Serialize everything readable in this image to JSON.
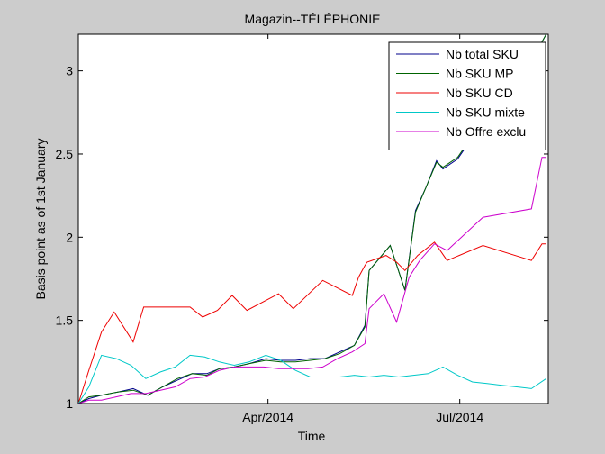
{
  "window": {
    "background": "#cccccc"
  },
  "chart_data": {
    "type": "line",
    "title": "Magazin--TÉLÉPHONIE",
    "xlabel": "Time",
    "ylabel": "Basis point as of 1st January",
    "x_ticks": [
      {
        "date": "2014-04-01",
        "label": "Apr/2014"
      },
      {
        "date": "2014-07-01",
        "label": "Jul/2014"
      }
    ],
    "xlim": [
      "2014-01-01",
      "2014-08-12"
    ],
    "ylim": [
      1,
      3.22
    ],
    "y_ticks": [
      1,
      1.5,
      2,
      2.5,
      3
    ],
    "y_tick_labels": [
      "1",
      "1.5",
      "2",
      "2.5",
      "3"
    ],
    "grid": false,
    "legend_position": "top-right",
    "series": [
      {
        "name": "Nb total SKU",
        "color": "#00008b",
        "x": [
          "2014-01-01",
          "2014-01-06",
          "2014-01-12",
          "2014-01-20",
          "2014-01-27",
          "2014-02-03",
          "2014-02-10",
          "2014-02-17",
          "2014-02-24",
          "2014-03-03",
          "2014-03-09",
          "2014-03-16",
          "2014-03-23",
          "2014-03-31",
          "2014-04-07",
          "2014-04-14",
          "2014-04-21",
          "2014-04-28",
          "2014-05-05",
          "2014-05-12",
          "2014-05-17",
          "2014-05-19",
          "2014-05-29",
          "2014-06-05",
          "2014-06-10",
          "2014-06-15",
          "2014-06-20",
          "2014-06-23",
          "2014-06-30",
          "2014-07-07",
          "2014-07-14",
          "2014-07-21",
          "2014-07-28",
          "2014-08-04",
          "2014-08-08",
          "2014-08-11"
        ],
        "y": [
          1.0,
          1.03,
          1.05,
          1.07,
          1.09,
          1.05,
          1.1,
          1.14,
          1.18,
          1.18,
          1.21,
          1.22,
          1.24,
          1.27,
          1.26,
          1.26,
          1.27,
          1.27,
          1.31,
          1.35,
          1.47,
          1.8,
          1.95,
          1.68,
          2.16,
          2.3,
          2.46,
          2.41,
          2.47,
          2.6,
          2.72,
          2.85,
          2.95,
          3.05,
          3.15,
          3.22
        ]
      },
      {
        "name": "Nb SKU MP",
        "color": "#006400",
        "x": [
          "2014-01-01",
          "2014-01-06",
          "2014-01-12",
          "2014-01-20",
          "2014-01-27",
          "2014-02-03",
          "2014-02-10",
          "2014-02-17",
          "2014-02-24",
          "2014-03-03",
          "2014-03-09",
          "2014-03-16",
          "2014-03-23",
          "2014-03-31",
          "2014-04-07",
          "2014-04-14",
          "2014-04-21",
          "2014-04-28",
          "2014-05-05",
          "2014-05-12",
          "2014-05-17",
          "2014-05-19",
          "2014-05-29",
          "2014-06-05",
          "2014-06-10",
          "2014-06-15",
          "2014-06-20",
          "2014-06-23",
          "2014-06-30",
          "2014-07-07",
          "2014-07-14",
          "2014-07-21",
          "2014-07-28",
          "2014-08-04",
          "2014-08-08",
          "2014-08-11"
        ],
        "y": [
          1.0,
          1.04,
          1.05,
          1.07,
          1.08,
          1.05,
          1.1,
          1.15,
          1.18,
          1.17,
          1.21,
          1.22,
          1.24,
          1.26,
          1.25,
          1.25,
          1.26,
          1.27,
          1.3,
          1.35,
          1.46,
          1.8,
          1.95,
          1.68,
          2.15,
          2.3,
          2.45,
          2.42,
          2.48,
          2.61,
          2.72,
          2.85,
          2.95,
          3.05,
          3.15,
          3.22
        ]
      },
      {
        "name": "Nb SKU CD",
        "color": "#ee0000",
        "x": [
          "2014-01-01",
          "2014-01-06",
          "2014-01-12",
          "2014-01-18",
          "2014-01-27",
          "2014-02-01",
          "2014-02-09",
          "2014-02-23",
          "2014-03-01",
          "2014-03-08",
          "2014-03-15",
          "2014-03-22",
          "2014-04-06",
          "2014-04-13",
          "2014-04-27",
          "2014-05-11",
          "2014-05-14",
          "2014-05-17",
          "2014-05-18",
          "2014-05-27",
          "2014-06-01",
          "2014-06-05",
          "2014-06-11",
          "2014-06-19",
          "2014-06-25",
          "2014-07-12",
          "2014-08-04",
          "2014-08-09",
          "2014-08-11"
        ],
        "y": [
          1.0,
          1.2,
          1.43,
          1.55,
          1.37,
          1.58,
          1.58,
          1.58,
          1.52,
          1.56,
          1.65,
          1.56,
          1.66,
          1.57,
          1.74,
          1.65,
          1.76,
          1.83,
          1.85,
          1.89,
          1.85,
          1.8,
          1.89,
          1.97,
          1.86,
          1.95,
          1.86,
          1.96,
          1.96
        ]
      },
      {
        "name": "Nb SKU mixte",
        "color": "#00c8c8",
        "x": [
          "2014-01-01",
          "2014-01-06",
          "2014-01-12",
          "2014-01-19",
          "2014-01-26",
          "2014-02-02",
          "2014-02-09",
          "2014-02-16",
          "2014-02-23",
          "2014-03-02",
          "2014-03-09",
          "2014-03-16",
          "2014-03-23",
          "2014-03-31",
          "2014-04-07",
          "2014-04-14",
          "2014-04-21",
          "2014-04-28",
          "2014-05-05",
          "2014-05-12",
          "2014-05-19",
          "2014-05-26",
          "2014-06-02",
          "2014-06-09",
          "2014-06-16",
          "2014-06-23",
          "2014-06-30",
          "2014-07-07",
          "2014-07-14",
          "2014-07-21",
          "2014-07-28",
          "2014-08-04",
          "2014-08-11"
        ],
        "y": [
          1.0,
          1.1,
          1.29,
          1.27,
          1.23,
          1.15,
          1.19,
          1.22,
          1.29,
          1.28,
          1.25,
          1.23,
          1.25,
          1.29,
          1.26,
          1.2,
          1.16,
          1.16,
          1.16,
          1.17,
          1.16,
          1.17,
          1.16,
          1.17,
          1.18,
          1.22,
          1.17,
          1.13,
          1.12,
          1.11,
          1.1,
          1.09,
          1.15
        ]
      },
      {
        "name": "Nb Offre exclu",
        "color": "#cc00cc",
        "x": [
          "2014-01-01",
          "2014-01-06",
          "2014-01-12",
          "2014-01-19",
          "2014-01-26",
          "2014-02-02",
          "2014-02-09",
          "2014-02-16",
          "2014-02-23",
          "2014-03-02",
          "2014-03-09",
          "2014-03-16",
          "2014-03-23",
          "2014-03-30",
          "2014-04-06",
          "2014-04-13",
          "2014-04-20",
          "2014-04-27",
          "2014-05-04",
          "2014-05-11",
          "2014-05-17",
          "2014-05-19",
          "2014-05-26",
          "2014-06-01",
          "2014-06-07",
          "2014-06-12",
          "2014-06-19",
          "2014-06-25",
          "2014-07-12",
          "2014-08-04",
          "2014-08-09",
          "2014-08-11"
        ],
        "y": [
          1.0,
          1.02,
          1.02,
          1.04,
          1.06,
          1.06,
          1.08,
          1.1,
          1.15,
          1.16,
          1.2,
          1.22,
          1.22,
          1.22,
          1.21,
          1.21,
          1.21,
          1.22,
          1.27,
          1.31,
          1.36,
          1.57,
          1.66,
          1.49,
          1.76,
          1.86,
          1.96,
          1.92,
          2.12,
          2.17,
          2.48,
          2.48
        ]
      }
    ]
  }
}
